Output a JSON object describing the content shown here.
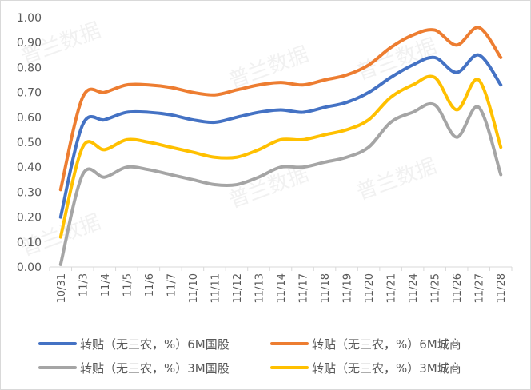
{
  "chart_data": {
    "type": "line",
    "title": "",
    "xlabel": "",
    "ylabel": "",
    "ylim": [
      0,
      1.0
    ],
    "yticks": [
      "0.00",
      "0.10",
      "0.20",
      "0.30",
      "0.40",
      "0.50",
      "0.60",
      "0.70",
      "0.80",
      "0.90",
      "1.00"
    ],
    "grid": false,
    "smooth": true,
    "legend_position": "bottom",
    "categories": [
      "10/31",
      "11/3",
      "11/4",
      "11/5",
      "11/6",
      "11/7",
      "11/10",
      "11/11",
      "11/12",
      "11/13",
      "11/14",
      "11/17",
      "11/18",
      "11/19",
      "11/20",
      "11/21",
      "11/24",
      "11/25",
      "11/26",
      "11/27",
      "11/28"
    ],
    "series": [
      {
        "name": "转贴（无三农，%）6M国股",
        "color": "#4472C4",
        "values": [
          0.2,
          0.57,
          0.59,
          0.62,
          0.62,
          0.61,
          0.59,
          0.58,
          0.6,
          0.62,
          0.63,
          0.62,
          0.64,
          0.66,
          0.7,
          0.76,
          0.81,
          0.84,
          0.78,
          0.85,
          0.73
        ]
      },
      {
        "name": "转贴（无三农，%）6M城商",
        "color": "#ED7D31",
        "values": [
          0.31,
          0.68,
          0.7,
          0.73,
          0.73,
          0.72,
          0.7,
          0.69,
          0.71,
          0.73,
          0.74,
          0.73,
          0.75,
          0.77,
          0.81,
          0.88,
          0.93,
          0.95,
          0.89,
          0.96,
          0.84
        ]
      },
      {
        "name": "转贴（无三农，%）3M国股",
        "color": "#A5A5A5",
        "values": [
          0.01,
          0.37,
          0.36,
          0.4,
          0.39,
          0.37,
          0.35,
          0.33,
          0.33,
          0.36,
          0.4,
          0.4,
          0.42,
          0.44,
          0.48,
          0.58,
          0.62,
          0.65,
          0.52,
          0.64,
          0.37
        ]
      },
      {
        "name": "转贴（无三农，%）3M城商",
        "color": "#FFC000",
        "values": [
          0.12,
          0.48,
          0.47,
          0.51,
          0.5,
          0.48,
          0.46,
          0.44,
          0.44,
          0.47,
          0.51,
          0.51,
          0.53,
          0.55,
          0.59,
          0.68,
          0.73,
          0.76,
          0.63,
          0.75,
          0.48
        ]
      }
    ]
  },
  "watermark": "普兰数据"
}
